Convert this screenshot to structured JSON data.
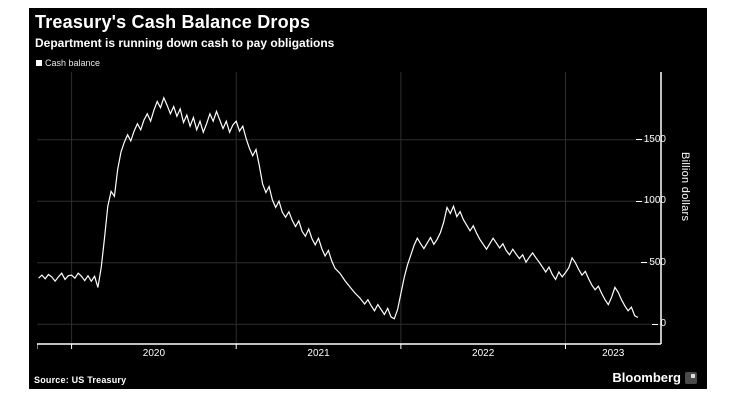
{
  "header": {
    "title": "Treasury's Cash Balance Drops",
    "subtitle": "Department is running down cash to pay obligations"
  },
  "legend": {
    "label": "Cash balance",
    "swatch_color": "#ffffff"
  },
  "footer": {
    "source": "Source: US Treasury",
    "brand": "Bloomberg"
  },
  "colors": {
    "card_background": "#000000",
    "page_background": "#ffffff",
    "line": "#ffffff",
    "grid": "#2e2e2e",
    "axis": "#ffffff",
    "text": "#ffffff"
  },
  "chart_data": {
    "type": "line",
    "title": "Treasury's Cash Balance Drops",
    "subtitle": "Department is running down cash to pay obligations",
    "xlabel": "",
    "ylabel": "Billion dollars",
    "xlim": [
      2019.79,
      2023.58
    ],
    "ylim": [
      -160,
      2050
    ],
    "y_ticks": [
      0,
      500,
      1000,
      1500
    ],
    "x_tick_years": [
      2020,
      2021,
      2022,
      2023
    ],
    "x_tick_labels": [
      "2020",
      "2021",
      "2022",
      "2023"
    ],
    "grid": true,
    "legend_position": "top-left",
    "series": [
      {
        "name": "Cash balance",
        "color": "#ffffff",
        "units": "billion USD",
        "points": [
          [
            2019.8,
            375
          ],
          [
            2019.82,
            400
          ],
          [
            2019.84,
            370
          ],
          [
            2019.86,
            405
          ],
          [
            2019.88,
            385
          ],
          [
            2019.9,
            350
          ],
          [
            2019.92,
            385
          ],
          [
            2019.94,
            415
          ],
          [
            2019.96,
            365
          ],
          [
            2019.98,
            395
          ],
          [
            2020.0,
            400
          ],
          [
            2020.02,
            375
          ],
          [
            2020.04,
            415
          ],
          [
            2020.06,
            390
          ],
          [
            2020.08,
            355
          ],
          [
            2020.1,
            395
          ],
          [
            2020.12,
            350
          ],
          [
            2020.14,
            390
          ],
          [
            2020.16,
            300
          ],
          [
            2020.18,
            460
          ],
          [
            2020.2,
            700
          ],
          [
            2020.22,
            960
          ],
          [
            2020.24,
            1080
          ],
          [
            2020.26,
            1040
          ],
          [
            2020.28,
            1260
          ],
          [
            2020.3,
            1400
          ],
          [
            2020.32,
            1480
          ],
          [
            2020.34,
            1540
          ],
          [
            2020.36,
            1490
          ],
          [
            2020.38,
            1570
          ],
          [
            2020.4,
            1630
          ],
          [
            2020.42,
            1580
          ],
          [
            2020.44,
            1660
          ],
          [
            2020.46,
            1710
          ],
          [
            2020.48,
            1650
          ],
          [
            2020.5,
            1740
          ],
          [
            2020.52,
            1810
          ],
          [
            2020.54,
            1760
          ],
          [
            2020.56,
            1840
          ],
          [
            2020.58,
            1780
          ],
          [
            2020.6,
            1710
          ],
          [
            2020.62,
            1770
          ],
          [
            2020.64,
            1690
          ],
          [
            2020.66,
            1750
          ],
          [
            2020.68,
            1640
          ],
          [
            2020.7,
            1700
          ],
          [
            2020.72,
            1610
          ],
          [
            2020.74,
            1680
          ],
          [
            2020.76,
            1580
          ],
          [
            2020.78,
            1650
          ],
          [
            2020.8,
            1560
          ],
          [
            2020.82,
            1630
          ],
          [
            2020.84,
            1710
          ],
          [
            2020.86,
            1650
          ],
          [
            2020.88,
            1730
          ],
          [
            2020.9,
            1660
          ],
          [
            2020.92,
            1590
          ],
          [
            2020.94,
            1650
          ],
          [
            2020.96,
            1560
          ],
          [
            2020.98,
            1620
          ],
          [
            2021.0,
            1650
          ],
          [
            2021.02,
            1570
          ],
          [
            2021.04,
            1610
          ],
          [
            2021.06,
            1510
          ],
          [
            2021.08,
            1430
          ],
          [
            2021.1,
            1370
          ],
          [
            2021.12,
            1420
          ],
          [
            2021.14,
            1290
          ],
          [
            2021.16,
            1140
          ],
          [
            2021.18,
            1070
          ],
          [
            2021.2,
            1120
          ],
          [
            2021.22,
            1010
          ],
          [
            2021.24,
            950
          ],
          [
            2021.26,
            1000
          ],
          [
            2021.28,
            910
          ],
          [
            2021.3,
            870
          ],
          [
            2021.32,
            915
          ],
          [
            2021.34,
            845
          ],
          [
            2021.36,
            795
          ],
          [
            2021.38,
            840
          ],
          [
            2021.4,
            755
          ],
          [
            2021.42,
            715
          ],
          [
            2021.44,
            775
          ],
          [
            2021.46,
            695
          ],
          [
            2021.48,
            645
          ],
          [
            2021.5,
            700
          ],
          [
            2021.52,
            615
          ],
          [
            2021.54,
            555
          ],
          [
            2021.56,
            600
          ],
          [
            2021.58,
            515
          ],
          [
            2021.6,
            455
          ],
          [
            2021.63,
            415
          ],
          [
            2021.66,
            355
          ],
          [
            2021.69,
            305
          ],
          [
            2021.72,
            255
          ],
          [
            2021.75,
            215
          ],
          [
            2021.78,
            165
          ],
          [
            2021.8,
            200
          ],
          [
            2021.82,
            150
          ],
          [
            2021.84,
            110
          ],
          [
            2021.86,
            160
          ],
          [
            2021.88,
            120
          ],
          [
            2021.9,
            80
          ],
          [
            2021.92,
            130
          ],
          [
            2021.94,
            60
          ],
          [
            2021.96,
            45
          ],
          [
            2021.98,
            120
          ],
          [
            2022.0,
            250
          ],
          [
            2022.02,
            380
          ],
          [
            2022.04,
            480
          ],
          [
            2022.06,
            560
          ],
          [
            2022.08,
            640
          ],
          [
            2022.1,
            700
          ],
          [
            2022.12,
            655
          ],
          [
            2022.14,
            615
          ],
          [
            2022.16,
            660
          ],
          [
            2022.18,
            705
          ],
          [
            2022.2,
            650
          ],
          [
            2022.22,
            690
          ],
          [
            2022.24,
            745
          ],
          [
            2022.26,
            830
          ],
          [
            2022.28,
            950
          ],
          [
            2022.3,
            900
          ],
          [
            2022.32,
            960
          ],
          [
            2022.34,
            875
          ],
          [
            2022.36,
            915
          ],
          [
            2022.38,
            850
          ],
          [
            2022.4,
            805
          ],
          [
            2022.42,
            760
          ],
          [
            2022.44,
            800
          ],
          [
            2022.46,
            740
          ],
          [
            2022.48,
            690
          ],
          [
            2022.5,
            650
          ],
          [
            2022.52,
            610
          ],
          [
            2022.54,
            655
          ],
          [
            2022.56,
            700
          ],
          [
            2022.58,
            660
          ],
          [
            2022.6,
            620
          ],
          [
            2022.62,
            655
          ],
          [
            2022.64,
            600
          ],
          [
            2022.66,
            565
          ],
          [
            2022.68,
            610
          ],
          [
            2022.7,
            570
          ],
          [
            2022.72,
            535
          ],
          [
            2022.74,
            565
          ],
          [
            2022.76,
            505
          ],
          [
            2022.78,
            545
          ],
          [
            2022.8,
            580
          ],
          [
            2022.82,
            540
          ],
          [
            2022.84,
            505
          ],
          [
            2022.86,
            465
          ],
          [
            2022.88,
            425
          ],
          [
            2022.9,
            465
          ],
          [
            2022.92,
            405
          ],
          [
            2022.94,
            365
          ],
          [
            2022.96,
            425
          ],
          [
            2022.98,
            385
          ],
          [
            2023.0,
            420
          ],
          [
            2023.02,
            460
          ],
          [
            2023.04,
            540
          ],
          [
            2023.06,
            500
          ],
          [
            2023.08,
            445
          ],
          [
            2023.1,
            400
          ],
          [
            2023.12,
            430
          ],
          [
            2023.14,
            370
          ],
          [
            2023.16,
            320
          ],
          [
            2023.18,
            280
          ],
          [
            2023.2,
            310
          ],
          [
            2023.22,
            250
          ],
          [
            2023.24,
            200
          ],
          [
            2023.26,
            160
          ],
          [
            2023.28,
            220
          ],
          [
            2023.3,
            300
          ],
          [
            2023.32,
            260
          ],
          [
            2023.34,
            200
          ],
          [
            2023.36,
            150
          ],
          [
            2023.38,
            110
          ],
          [
            2023.4,
            140
          ],
          [
            2023.42,
            70
          ],
          [
            2023.44,
            55
          ]
        ]
      }
    ]
  }
}
